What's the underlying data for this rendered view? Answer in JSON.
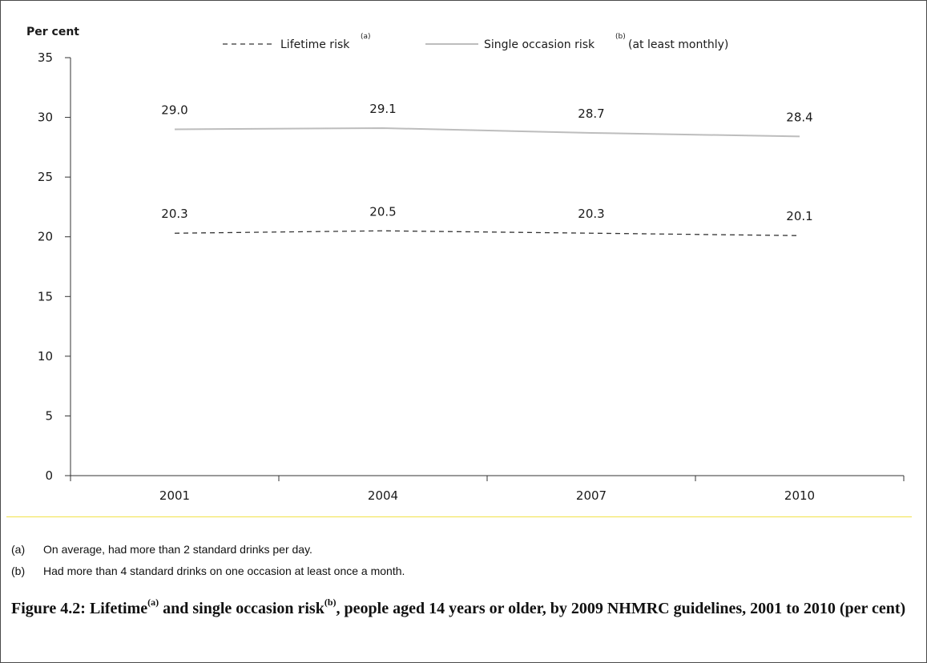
{
  "chart_data": {
    "type": "line",
    "ylabel": "Per cent",
    "xlabel": "",
    "categories": [
      "2001",
      "2004",
      "2007",
      "2010"
    ],
    "ylim": [
      0,
      35
    ],
    "yticks": [
      "0",
      "5",
      "10",
      "15",
      "20",
      "25",
      "30",
      "35"
    ],
    "grid": false,
    "legend_position": "top",
    "series": [
      {
        "name": "Lifetime risk",
        "name_sup": "(a)",
        "style": "dashed",
        "color": "#333333",
        "values": [
          20.3,
          20.5,
          20.3,
          20.1
        ],
        "value_labels": [
          "20.3",
          "20.5",
          "20.3",
          "20.1"
        ]
      },
      {
        "name": "Single occasion risk",
        "name_sup": "(b)",
        "name_suffix": "(at least monthly)",
        "style": "solid",
        "color": "#bdbdbd",
        "values": [
          29.0,
          29.1,
          28.7,
          28.4
        ],
        "value_labels": [
          "29.0",
          "29.1",
          "28.7",
          "28.4"
        ]
      }
    ]
  },
  "notes": [
    {
      "key": "(a)",
      "text": "On average, had more than 2 standard drinks per day."
    },
    {
      "key": "(b)",
      "text": "Had more than 4 standard drinks on one occasion at least once a month."
    }
  ],
  "caption": {
    "part1": "Figure 4.2: Lifetime",
    "sup1": "(a)",
    "part2": " and single occasion risk",
    "sup2": "(b)",
    "part3": ", people aged 14 years or older, by 2009 NHMRC guidelines, 2001 to 2010 (per cent)"
  },
  "colors": {
    "axis": "#333333",
    "separator": "#f2e24a"
  }
}
